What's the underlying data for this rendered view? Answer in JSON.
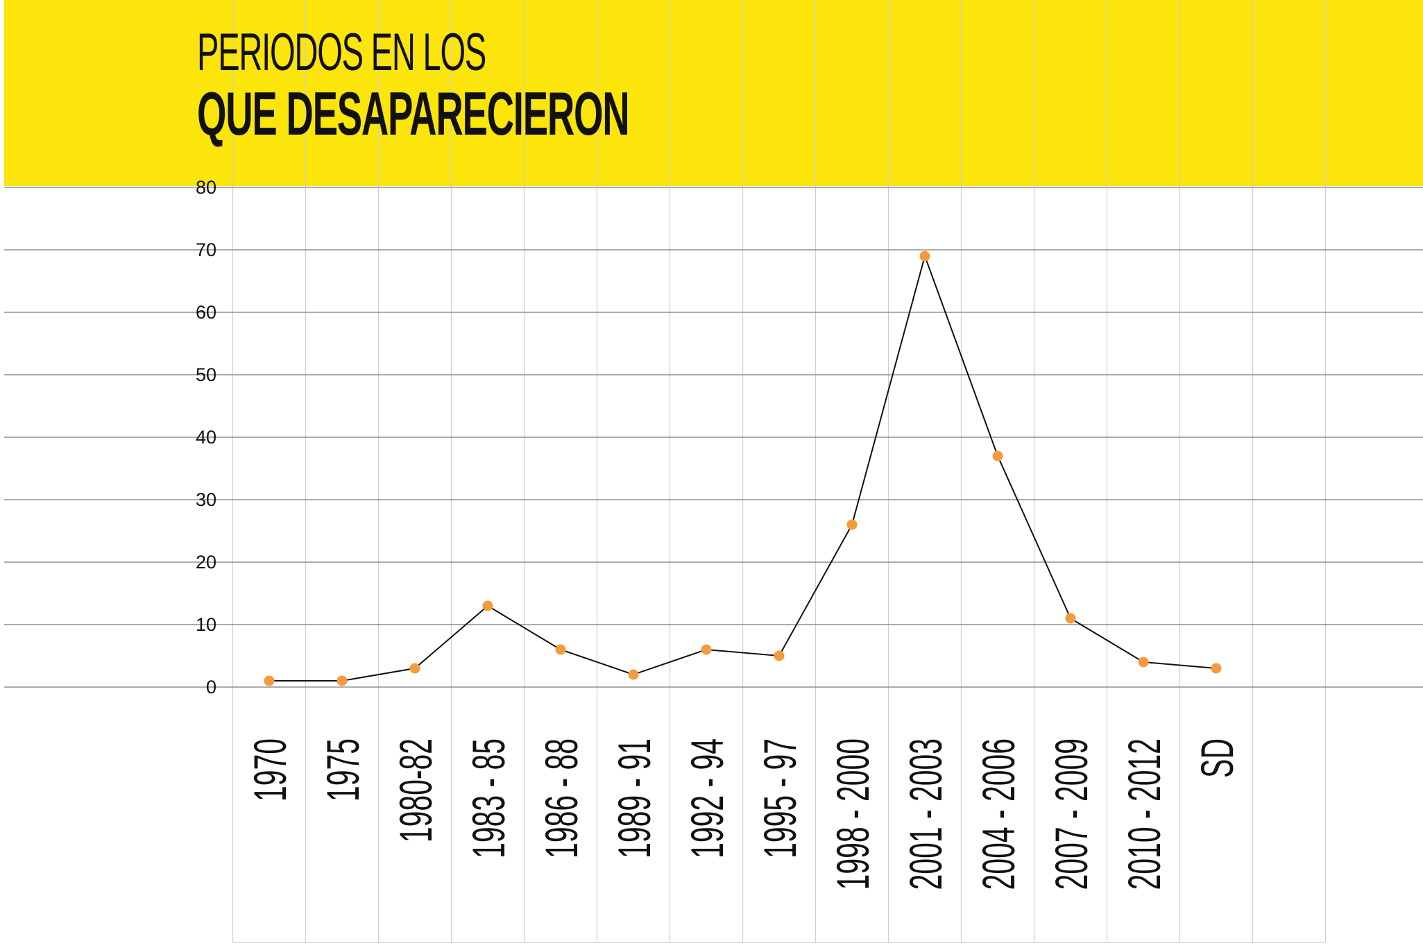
{
  "colors": {
    "header_band": "#fbe50a",
    "line": "#111111",
    "marker": "#f59a3e",
    "grid_horizontal": "#7a7a7a",
    "grid_vertical": "#cfcfcf",
    "text": "#111111"
  },
  "chart_data": {
    "type": "line",
    "title_line1": "PERIODOS EN LOS",
    "title_line2": "QUE DESAPARECIERON",
    "xlabel": "",
    "ylabel": "",
    "categories": [
      "1970",
      "1975",
      "1980-82",
      "1983 - 85",
      "1986 - 88",
      "1989 - 91",
      "1992 - 94",
      "1995 - 97",
      "1998 - 2000",
      "2001 - 2003",
      "2004 - 2006",
      "2007 - 2009",
      "2010 - 2012",
      "SD"
    ],
    "values": [
      1,
      1,
      3,
      13,
      6,
      2,
      6,
      5,
      26,
      69,
      37,
      11,
      4,
      3
    ],
    "ylim": [
      0,
      80
    ],
    "yticks": [
      0,
      10,
      20,
      30,
      40,
      50,
      60,
      70,
      80
    ],
    "grid": true,
    "legend": "none"
  }
}
